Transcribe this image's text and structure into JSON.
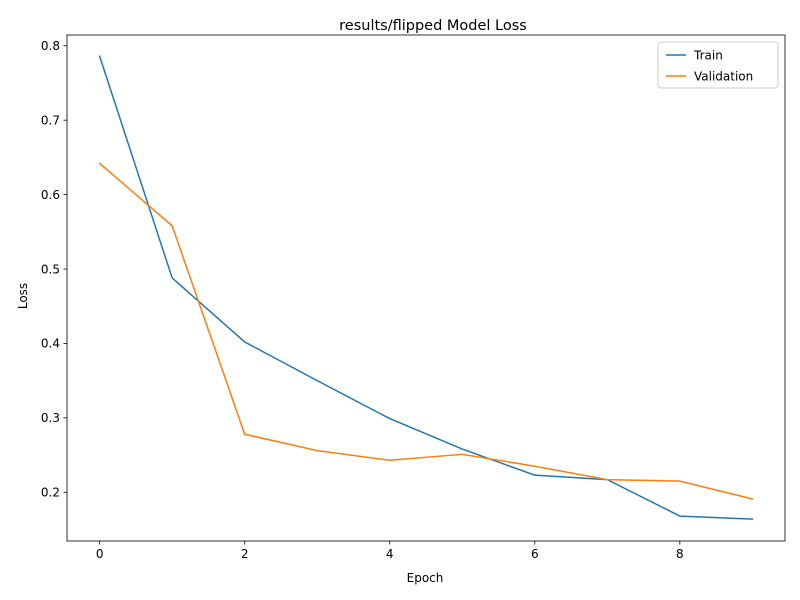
{
  "chart_data": {
    "type": "line",
    "title": "results/flipped Model Loss",
    "xlabel": "Epoch",
    "ylabel": "Loss",
    "x": [
      0,
      1,
      2,
      3,
      4,
      5,
      6,
      7,
      8,
      9
    ],
    "xlim": [
      -0.45,
      9.45
    ],
    "ylim": [
      0.1345,
      0.8145
    ],
    "xticks": [
      0,
      2,
      4,
      6,
      8
    ],
    "yticks": [
      0.2,
      0.3,
      0.4,
      0.5,
      0.6,
      0.7,
      0.8
    ],
    "grid": false,
    "legend_position": "top-right",
    "series": [
      {
        "name": "Train",
        "color": "#1f77b4",
        "values": [
          0.786,
          0.488,
          0.402,
          0.35,
          0.299,
          0.258,
          0.223,
          0.217,
          0.168,
          0.164
        ]
      },
      {
        "name": "Validation",
        "color": "#ff7f0e",
        "values": [
          0.642,
          0.558,
          0.278,
          0.256,
          0.243,
          0.251,
          0.235,
          0.217,
          0.215,
          0.191
        ]
      }
    ]
  }
}
